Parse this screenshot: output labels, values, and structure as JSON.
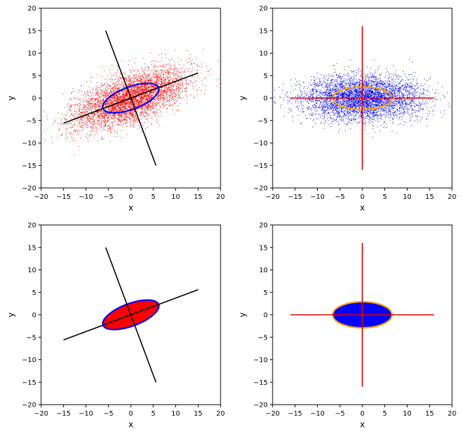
{
  "colors": {
    "red": "#ff0000",
    "blue": "#0000ff",
    "orange": "#ffa500",
    "black": "#000000",
    "axis_red": "#e00000"
  },
  "chart_data": [
    {
      "type": "scatter",
      "panel": "top-left",
      "description_points": "bivariate normal sample, correlated",
      "sample": {
        "count": 4500,
        "mean": [
          0,
          0
        ],
        "sd_major": 6.6,
        "sd_minor": 2.5,
        "angle_deg": 20.5,
        "color": "#ff0000"
      },
      "ellipse": {
        "center": [
          0,
          0
        ],
        "semi_major": 6.6,
        "semi_minor": 2.5,
        "angle_deg": 20.5,
        "stroke": "#0000ff",
        "fill": "none"
      },
      "axes_lines": [
        {
          "x": [
            -15,
            15
          ],
          "y": [
            -5.6,
            5.6
          ],
          "color": "#000000"
        },
        {
          "x": [
            -5.6,
            5.6
          ],
          "y": [
            15,
            -15
          ],
          "color": "#000000"
        }
      ],
      "xlabel": "x",
      "ylabel": "y",
      "xlim": [
        -20,
        20
      ],
      "ylim": [
        -20,
        20
      ],
      "xticks": [
        -20,
        -15,
        -10,
        -5,
        0,
        5,
        10,
        15,
        20
      ],
      "yticks": [
        -20,
        -15,
        -10,
        -5,
        0,
        5,
        10,
        15,
        20
      ]
    },
    {
      "type": "scatter",
      "panel": "top-right",
      "description_points": "bivariate normal sample, axis-aligned",
      "sample": {
        "count": 4500,
        "mean": [
          0,
          0
        ],
        "sd_major": 6.6,
        "sd_minor": 2.5,
        "angle_deg": 0,
        "color": "#0000ff"
      },
      "ellipse": {
        "center": [
          0,
          0
        ],
        "semi_major": 6.6,
        "semi_minor": 2.5,
        "angle_deg": 0,
        "stroke": "#ffa500",
        "fill": "none"
      },
      "axes_lines": [
        {
          "x": [
            -16,
            16
          ],
          "y": [
            0,
            0
          ],
          "color": "#e00000"
        },
        {
          "x": [
            0,
            0
          ],
          "y": [
            -16,
            16
          ],
          "color": "#e00000"
        }
      ],
      "xlabel": "x",
      "ylabel": "y",
      "xlim": [
        -20,
        20
      ],
      "ylim": [
        -20,
        20
      ],
      "xticks": [
        -20,
        -15,
        -10,
        -5,
        0,
        5,
        10,
        15,
        20
      ],
      "yticks": [
        -20,
        -15,
        -10,
        -5,
        0,
        5,
        10,
        15,
        20
      ]
    },
    {
      "type": "ellipse",
      "panel": "bottom-left",
      "ellipse": {
        "center": [
          0,
          0
        ],
        "semi_major": 6.6,
        "semi_minor": 2.5,
        "angle_deg": 20.5,
        "stroke": "#0000ff",
        "fill": "#ff0000"
      },
      "axes_lines": [
        {
          "x": [
            -15,
            15
          ],
          "y": [
            -5.6,
            5.6
          ],
          "color": "#000000"
        },
        {
          "x": [
            -5.6,
            5.6
          ],
          "y": [
            15,
            -15
          ],
          "color": "#000000"
        }
      ],
      "xlabel": "x",
      "ylabel": "y",
      "xlim": [
        -20,
        20
      ],
      "ylim": [
        -20,
        20
      ],
      "xticks": [
        -20,
        -15,
        -10,
        -5,
        0,
        5,
        10,
        15,
        20
      ],
      "yticks": [
        -20,
        -15,
        -10,
        -5,
        0,
        5,
        10,
        15,
        20
      ]
    },
    {
      "type": "ellipse",
      "panel": "bottom-right",
      "ellipse": {
        "center": [
          0,
          0
        ],
        "semi_major": 6.6,
        "semi_minor": 2.9,
        "angle_deg": 0,
        "stroke": "#ffa500",
        "fill": "#0000ff"
      },
      "axes_lines": [
        {
          "x": [
            -16,
            16
          ],
          "y": [
            0,
            0
          ],
          "color": "#e00000"
        },
        {
          "x": [
            0,
            0
          ],
          "y": [
            -16,
            16
          ],
          "color": "#e00000"
        }
      ],
      "xlabel": "x",
      "ylabel": "y",
      "xlim": [
        -20,
        20
      ],
      "ylim": [
        -20,
        20
      ],
      "xticks": [
        -20,
        -15,
        -10,
        -5,
        0,
        5,
        10,
        15,
        20
      ],
      "yticks": [
        -20,
        -15,
        -10,
        -5,
        0,
        5,
        10,
        15,
        20
      ]
    }
  ]
}
